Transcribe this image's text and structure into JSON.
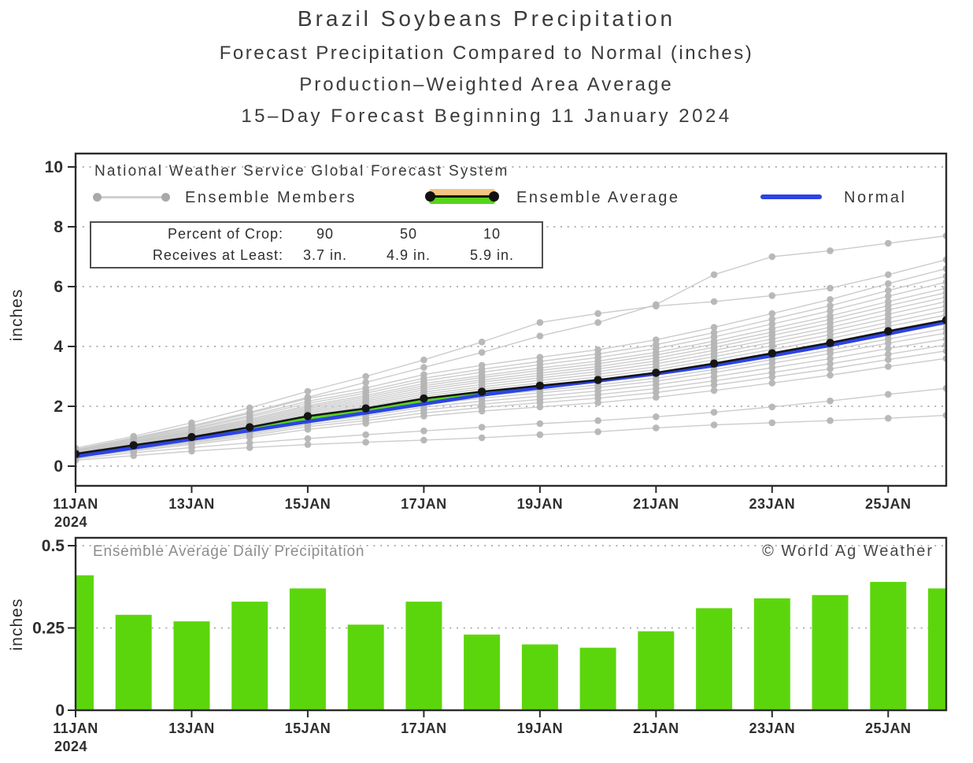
{
  "titles": {
    "line1": "Brazil Soybeans Precipitation",
    "line2": "Forecast Precipitation Compared to Normal (inches)",
    "line3": "Production–Weighted Area Average",
    "line4": "15–Day Forecast Beginning 11 January 2024"
  },
  "top_chart": {
    "y_axis_label": "inches",
    "annotation": "National Weather Service Global Forecast System",
    "legend": {
      "members": "Ensemble Members",
      "average": "Ensemble Average",
      "normal": "Normal"
    },
    "crop_table": {
      "row1_label": "Percent of Crop:",
      "row2_label": "Receives at Least:",
      "row1_values": [
        "90",
        "50",
        "10"
      ],
      "row2_values": [
        "3.7 in.",
        "4.9 in.",
        "5.9 in."
      ]
    }
  },
  "bottom_chart": {
    "y_axis_label": "inches",
    "title": "Ensemble Average Daily Precipitation",
    "copyright": "© World Ag Weather"
  },
  "colors": {
    "member_line": "#c6c6c6",
    "member_dot": "#b5b5b5",
    "average": "#151515",
    "normal": "#2c44e4",
    "band_above_normal": "#57d41a",
    "band_below_normal": "#f2c481",
    "bar": "#5cd60c",
    "grid": "#a8a8a8",
    "frame": "#2b2b2b"
  },
  "chart_data": [
    {
      "type": "line",
      "title": "Cumulative forecast precipitation vs normal",
      "xlabel": "date",
      "ylabel": "inches",
      "ylim": [
        0,
        10
      ],
      "grid": true,
      "x_days": [
        11,
        12,
        13,
        14,
        15,
        16,
        17,
        18,
        19,
        20,
        21,
        22,
        23,
        24,
        25,
        26
      ],
      "x_ticks": [
        {
          "day": 11,
          "label": "11JAN",
          "year": "2024"
        },
        {
          "day": 13,
          "label": "13JAN"
        },
        {
          "day": 15,
          "label": "15JAN"
        },
        {
          "day": 17,
          "label": "17JAN"
        },
        {
          "day": 19,
          "label": "19JAN"
        },
        {
          "day": 21,
          "label": "21JAN"
        },
        {
          "day": 23,
          "label": "23JAN"
        },
        {
          "day": 25,
          "label": "25JAN"
        }
      ],
      "y_ticks": [
        {
          "v": 0,
          "label": "0"
        },
        {
          "v": 2,
          "label": "2"
        },
        {
          "v": 4,
          "label": "4"
        },
        {
          "v": 6,
          "label": "6"
        },
        {
          "v": 8,
          "label": "8"
        },
        {
          "v": 10,
          "label": "10"
        }
      ],
      "series": [
        {
          "name": "Ensemble Average",
          "color_key": "average",
          "values": [
            0.41,
            0.7,
            0.97,
            1.3,
            1.67,
            1.93,
            2.26,
            2.49,
            2.69,
            2.88,
            3.12,
            3.43,
            3.77,
            4.12,
            4.51,
            4.88
          ]
        },
        {
          "name": "Normal",
          "color_key": "normal",
          "values": [
            0.32,
            0.61,
            0.9,
            1.19,
            1.49,
            1.78,
            2.08,
            2.38,
            2.62,
            2.85,
            3.09,
            3.36,
            3.69,
            4.04,
            4.42,
            4.82
          ]
        }
      ],
      "ensemble_members": [
        [
          0.55,
          0.95,
          1.35,
          1.8,
          2.3,
          2.8,
          3.3,
          3.8,
          4.35,
          4.8,
          5.4,
          6.4,
          7.0,
          7.2,
          7.45,
          7.7
        ],
        [
          0.6,
          1.0,
          1.45,
          1.95,
          2.5,
          3.0,
          3.55,
          4.15,
          4.8,
          5.1,
          5.35,
          5.5,
          5.7,
          5.95,
          6.4,
          6.9
        ],
        [
          0.55,
          0.94,
          1.31,
          1.76,
          2.26,
          2.61,
          3.06,
          3.37,
          3.64,
          3.89,
          4.22,
          4.64,
          5.1,
          5.57,
          6.1,
          6.6
        ],
        [
          0.53,
          0.91,
          1.26,
          1.69,
          2.17,
          2.51,
          2.94,
          3.24,
          3.5,
          3.75,
          4.06,
          4.46,
          4.91,
          5.36,
          5.87,
          6.35
        ],
        [
          0.52,
          0.88,
          1.22,
          1.64,
          2.1,
          2.44,
          2.85,
          3.14,
          3.39,
          3.63,
          3.93,
          4.32,
          4.75,
          5.19,
          5.68,
          6.15
        ],
        [
          0.5,
          0.85,
          1.18,
          1.58,
          2.03,
          2.36,
          2.76,
          3.03,
          3.28,
          3.51,
          3.8,
          4.18,
          4.6,
          5.02,
          5.5,
          5.95
        ],
        [
          0.49,
          0.83,
          1.15,
          1.54,
          1.98,
          2.3,
          2.69,
          2.96,
          3.2,
          3.42,
          3.71,
          4.08,
          4.48,
          4.9,
          5.36,
          5.8
        ],
        [
          0.47,
          0.81,
          1.12,
          1.5,
          1.93,
          2.24,
          2.62,
          2.88,
          3.11,
          3.33,
          3.61,
          3.97,
          4.37,
          4.77,
          5.22,
          5.65
        ],
        [
          0.46,
          0.79,
          1.09,
          1.46,
          1.88,
          2.18,
          2.55,
          2.81,
          3.03,
          3.25,
          3.51,
          3.87,
          4.25,
          4.64,
          5.08,
          5.5
        ],
        [
          0.45,
          0.77,
          1.06,
          1.42,
          1.83,
          2.12,
          2.48,
          2.73,
          2.95,
          3.16,
          3.42,
          3.76,
          4.14,
          4.52,
          4.94,
          5.35
        ],
        [
          0.44,
          0.74,
          1.03,
          1.38,
          1.78,
          2.06,
          2.41,
          2.65,
          2.87,
          3.07,
          3.32,
          3.66,
          4.02,
          4.39,
          4.8,
          5.2
        ],
        [
          0.42,
          0.72,
          1.0,
          1.34,
          1.73,
          2.0,
          2.34,
          2.58,
          2.78,
          2.98,
          3.23,
          3.55,
          3.9,
          4.26,
          4.67,
          5.05
        ],
        [
          0.41,
          0.7,
          0.98,
          1.3,
          1.68,
          1.94,
          2.27,
          2.5,
          2.7,
          2.89,
          3.13,
          3.44,
          3.79,
          4.14,
          4.53,
          4.9
        ],
        [
          0.4,
          0.68,
          0.95,
          1.26,
          1.62,
          1.88,
          2.2,
          2.42,
          2.62,
          2.8,
          3.04,
          3.34,
          3.67,
          4.01,
          4.39,
          4.75
        ],
        [
          0.39,
          0.66,
          0.92,
          1.22,
          1.57,
          1.82,
          2.13,
          2.35,
          2.53,
          2.71,
          2.94,
          3.23,
          3.56,
          3.88,
          4.25,
          4.6
        ],
        [
          0.37,
          0.64,
          0.89,
          1.18,
          1.52,
          1.76,
          2.06,
          2.27,
          2.45,
          2.63,
          2.84,
          3.13,
          3.44,
          3.76,
          4.11,
          4.45
        ],
        [
          0.36,
          0.61,
          0.85,
          1.13,
          1.45,
          1.68,
          1.97,
          2.17,
          2.34,
          2.51,
          2.72,
          2.99,
          3.29,
          3.59,
          3.93,
          4.25
        ],
        [
          0.34,
          0.58,
          0.81,
          1.08,
          1.39,
          1.6,
          1.88,
          2.07,
          2.23,
          2.39,
          2.59,
          2.85,
          3.13,
          3.42,
          3.74,
          4.05
        ],
        [
          0.32,
          0.55,
          0.77,
          1.02,
          1.32,
          1.52,
          1.78,
          1.96,
          2.12,
          2.27,
          2.46,
          2.71,
          2.98,
          3.25,
          3.56,
          3.85
        ],
        [
          0.3,
          0.51,
          0.72,
          0.96,
          1.23,
          1.43,
          1.67,
          1.84,
          1.98,
          2.12,
          2.3,
          2.53,
          2.78,
          3.04,
          3.33,
          3.6
        ],
        [
          0.25,
          0.45,
          0.62,
          0.78,
          0.92,
          1.05,
          1.18,
          1.3,
          1.42,
          1.52,
          1.65,
          1.8,
          1.98,
          2.18,
          2.4,
          2.6
        ],
        [
          0.2,
          0.35,
          0.5,
          0.62,
          0.72,
          0.8,
          0.87,
          0.95,
          1.05,
          1.15,
          1.28,
          1.38,
          1.45,
          1.52,
          1.6,
          1.7
        ]
      ]
    },
    {
      "type": "bar",
      "title": "Ensemble Average Daily Precipitation",
      "xlabel": "date",
      "ylabel": "inches",
      "ylim": [
        0,
        0.5
      ],
      "grid": true,
      "x_days": [
        11,
        12,
        13,
        14,
        15,
        16,
        17,
        18,
        19,
        20,
        21,
        22,
        23,
        24,
        25,
        26
      ],
      "x_ticks": [
        {
          "day": 11,
          "label": "11JAN",
          "year": "2024"
        },
        {
          "day": 13,
          "label": "13JAN"
        },
        {
          "day": 15,
          "label": "15JAN"
        },
        {
          "day": 17,
          "label": "17JAN"
        },
        {
          "day": 19,
          "label": "19JAN"
        },
        {
          "day": 21,
          "label": "21JAN"
        },
        {
          "day": 23,
          "label": "23JAN"
        },
        {
          "day": 25,
          "label": "25JAN"
        }
      ],
      "y_ticks": [
        {
          "v": 0,
          "label": "0"
        },
        {
          "v": 0.25,
          "label": "0.25"
        },
        {
          "v": 0.5,
          "label": "0.5"
        }
      ],
      "values": [
        0.41,
        0.29,
        0.27,
        0.33,
        0.37,
        0.26,
        0.33,
        0.23,
        0.2,
        0.19,
        0.24,
        0.31,
        0.34,
        0.35,
        0.39,
        0.37
      ]
    }
  ]
}
